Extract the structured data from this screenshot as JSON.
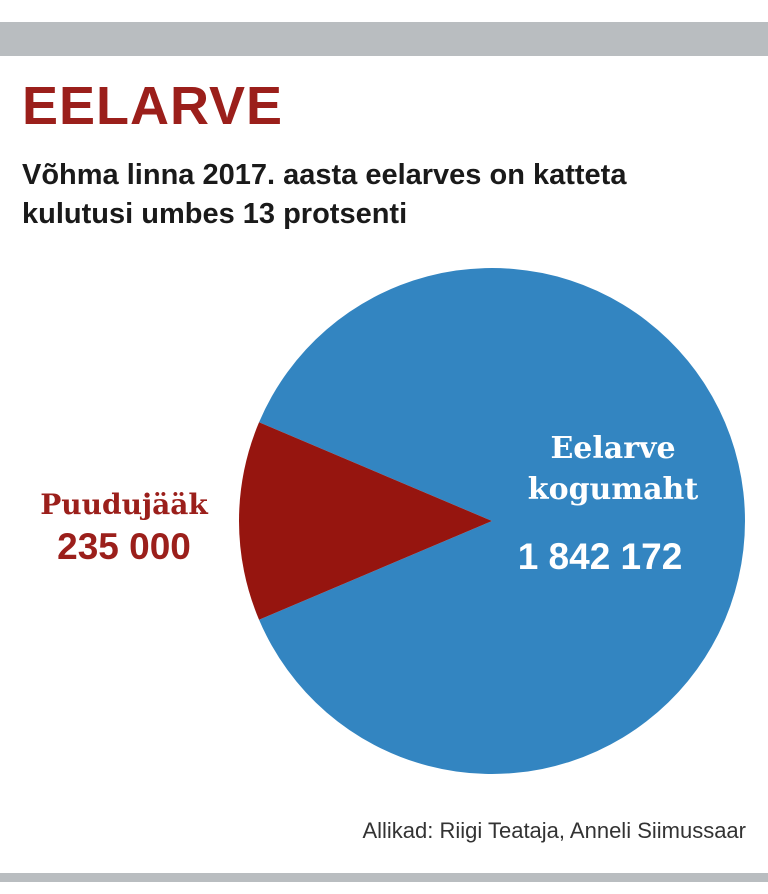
{
  "header": {
    "kicker": "EELARVE",
    "headline": "Võhma linna 2017. aasta eelarves on katteta kulutusi umbes 13 protsenti"
  },
  "colors": {
    "bar": "#b9bdc0",
    "kicker": "#9b1f1b",
    "deficit": "#96150f",
    "budget": "#3385c1",
    "budget_label": "#ffffff"
  },
  "chart_data": {
    "type": "pie",
    "title": "",
    "slices": [
      {
        "label_lines": [
          "Eelarve",
          "kogumaht"
        ],
        "value": 1842172,
        "value_label": "1 842 172",
        "color": "#3385c1"
      },
      {
        "label_lines": [
          "Puudujääk"
        ],
        "value": 235000,
        "value_label": "235 000",
        "color": "#96150f"
      }
    ],
    "legend": "none"
  },
  "footer": {
    "source": "Allikad: Riigi Teataja, Anneli Siimussaar"
  }
}
